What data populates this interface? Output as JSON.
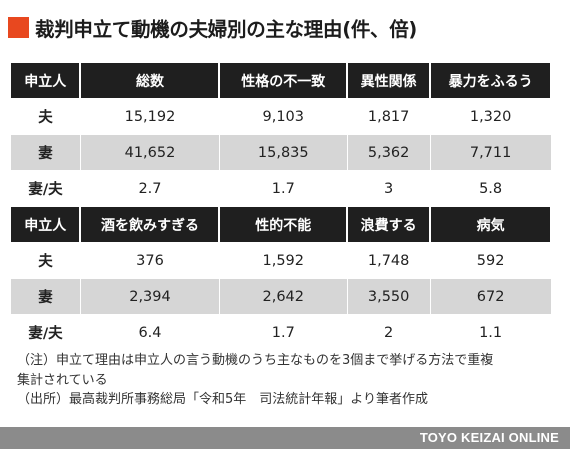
{
  "title": "裁判申立て動機の夫婦別の主な理由(件、倍)",
  "accent_color": "#e8481f",
  "table1": {
    "headers": [
      "申立人",
      "総数",
      "性格の不一致",
      "異性関係",
      "暴力をふるう"
    ],
    "rows": [
      [
        "夫",
        "15,192",
        "9,103",
        "1,817",
        "1,320"
      ],
      [
        "妻",
        "41,652",
        "15,835",
        "5,362",
        "7,711"
      ],
      [
        "妻/夫",
        "2.7",
        "1.7",
        "3",
        "5.8"
      ]
    ]
  },
  "table2": {
    "headers": [
      "申立人",
      "酒を飲みすぎる",
      "性的不能",
      "浪費する",
      "病気"
    ],
    "rows": [
      [
        "夫",
        "376",
        "1,592",
        "1,748",
        "592"
      ],
      [
        "妻",
        "2,394",
        "2,642",
        "3,550",
        "672"
      ],
      [
        "妻/夫",
        "6.4",
        "1.7",
        "2",
        "1.1"
      ]
    ]
  },
  "notes": [
    "（注）申立て理由は申立人の言う動機のうち主なものを3個まで挙げる方法で重複",
    "集計されている",
    "（出所）最高裁判所事務総局「令和5年　司法統計年報」より筆者作成"
  ],
  "footer": {
    "brand": "TOYO KEIZAI ONLINE"
  }
}
